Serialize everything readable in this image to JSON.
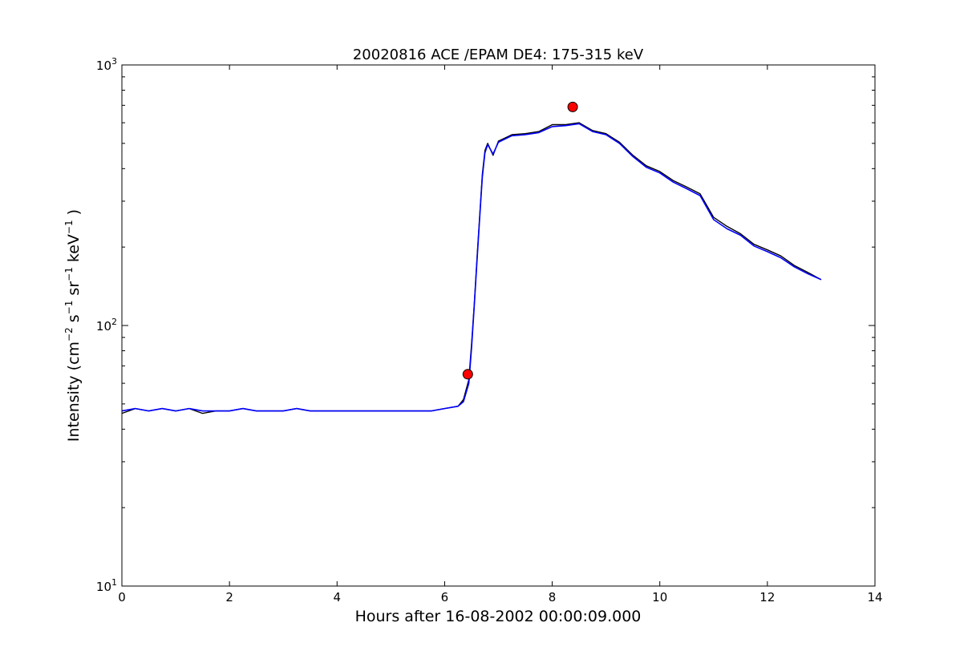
{
  "chart_data": {
    "type": "line",
    "title": "20020816 ACE /EPAM DE4: 175-315 keV",
    "xlabel": "Hours after 16-08-2002 00:00:09.000",
    "ylabel": {
      "base": "Intensity (cm",
      "exp1": "−2",
      "mid1": " s",
      "exp2": "−1",
      "mid2": " sr",
      "exp3": "−1",
      "mid3": " keV",
      "exp4": "−1",
      "end": " )"
    },
    "xlim": [
      0,
      14
    ],
    "ylim": [
      10,
      1000
    ],
    "yscale": "log",
    "grid": false,
    "xticks": [
      0,
      2,
      4,
      6,
      8,
      10,
      12,
      14
    ],
    "yticks": [
      {
        "value": 10,
        "base": "10",
        "exp": "1"
      },
      {
        "value": 100,
        "base": "10",
        "exp": "2"
      },
      {
        "value": 1000,
        "base": "10",
        "exp": "3"
      }
    ],
    "series": [
      {
        "role": "raw",
        "color": "#000000",
        "points": [
          [
            0.0,
            46
          ],
          [
            0.25,
            48
          ],
          [
            0.5,
            47
          ],
          [
            0.75,
            48
          ],
          [
            1.0,
            47
          ],
          [
            1.25,
            48
          ],
          [
            1.5,
            46
          ],
          [
            1.75,
            47
          ],
          [
            2.0,
            47
          ],
          [
            2.25,
            48
          ],
          [
            2.5,
            47
          ],
          [
            2.75,
            47
          ],
          [
            3.0,
            47
          ],
          [
            3.25,
            48
          ],
          [
            3.5,
            47
          ],
          [
            3.75,
            47
          ],
          [
            4.0,
            47
          ],
          [
            4.25,
            47
          ],
          [
            4.5,
            47
          ],
          [
            4.75,
            47
          ],
          [
            5.0,
            47
          ],
          [
            5.25,
            47
          ],
          [
            5.5,
            47
          ],
          [
            5.75,
            47
          ],
          [
            6.0,
            48
          ],
          [
            6.25,
            49
          ],
          [
            6.35,
            52
          ],
          [
            6.45,
            62
          ],
          [
            6.5,
            85
          ],
          [
            6.55,
            120
          ],
          [
            6.6,
            180
          ],
          [
            6.65,
            260
          ],
          [
            6.7,
            380
          ],
          [
            6.75,
            470
          ],
          [
            6.8,
            500
          ],
          [
            6.9,
            450
          ],
          [
            7.0,
            510
          ],
          [
            7.25,
            540
          ],
          [
            7.5,
            545
          ],
          [
            7.75,
            555
          ],
          [
            8.0,
            590
          ],
          [
            8.25,
            590
          ],
          [
            8.5,
            600
          ],
          [
            8.75,
            560
          ],
          [
            9.0,
            545
          ],
          [
            9.25,
            505
          ],
          [
            9.5,
            450
          ],
          [
            9.75,
            410
          ],
          [
            10.0,
            390
          ],
          [
            10.25,
            360
          ],
          [
            10.5,
            340
          ],
          [
            10.75,
            320
          ],
          [
            11.0,
            260
          ],
          [
            11.25,
            240
          ],
          [
            11.5,
            225
          ],
          [
            11.75,
            205
          ],
          [
            12.0,
            195
          ],
          [
            12.25,
            185
          ],
          [
            12.5,
            170
          ],
          [
            12.75,
            160
          ],
          [
            13.0,
            150
          ]
        ]
      },
      {
        "role": "smoothed",
        "color": "#0000ff",
        "points": [
          [
            0.0,
            47
          ],
          [
            0.25,
            48
          ],
          [
            0.5,
            47
          ],
          [
            0.75,
            48
          ],
          [
            1.0,
            47
          ],
          [
            1.25,
            48
          ],
          [
            1.5,
            47
          ],
          [
            1.75,
            47
          ],
          [
            2.0,
            47
          ],
          [
            2.25,
            48
          ],
          [
            2.5,
            47
          ],
          [
            2.75,
            47
          ],
          [
            3.0,
            47
          ],
          [
            3.25,
            48
          ],
          [
            3.5,
            47
          ],
          [
            3.75,
            47
          ],
          [
            4.0,
            47
          ],
          [
            4.25,
            47
          ],
          [
            4.5,
            47
          ],
          [
            4.75,
            47
          ],
          [
            5.0,
            47
          ],
          [
            5.25,
            47
          ],
          [
            5.5,
            47
          ],
          [
            5.75,
            47
          ],
          [
            6.0,
            48
          ],
          [
            6.25,
            49
          ],
          [
            6.35,
            51
          ],
          [
            6.45,
            60
          ],
          [
            6.5,
            82
          ],
          [
            6.55,
            118
          ],
          [
            6.6,
            175
          ],
          [
            6.65,
            255
          ],
          [
            6.7,
            370
          ],
          [
            6.75,
            460
          ],
          [
            6.8,
            495
          ],
          [
            6.9,
            455
          ],
          [
            7.0,
            505
          ],
          [
            7.25,
            535
          ],
          [
            7.5,
            540
          ],
          [
            7.75,
            550
          ],
          [
            8.0,
            580
          ],
          [
            8.25,
            585
          ],
          [
            8.5,
            595
          ],
          [
            8.75,
            555
          ],
          [
            9.0,
            540
          ],
          [
            9.25,
            500
          ],
          [
            9.5,
            445
          ],
          [
            9.75,
            405
          ],
          [
            10.0,
            385
          ],
          [
            10.25,
            355
          ],
          [
            10.5,
            335
          ],
          [
            10.75,
            315
          ],
          [
            11.0,
            255
          ],
          [
            11.25,
            235
          ],
          [
            11.5,
            222
          ],
          [
            11.75,
            202
          ],
          [
            12.0,
            192
          ],
          [
            12.25,
            182
          ],
          [
            12.5,
            168
          ],
          [
            12.75,
            158
          ],
          [
            13.0,
            150
          ]
        ]
      }
    ],
    "markers": [
      {
        "x": 6.43,
        "y": 65,
        "color": "#ff0000",
        "shape": "circle"
      },
      {
        "x": 8.38,
        "y": 690,
        "color": "#ff0000",
        "shape": "circle"
      }
    ]
  }
}
